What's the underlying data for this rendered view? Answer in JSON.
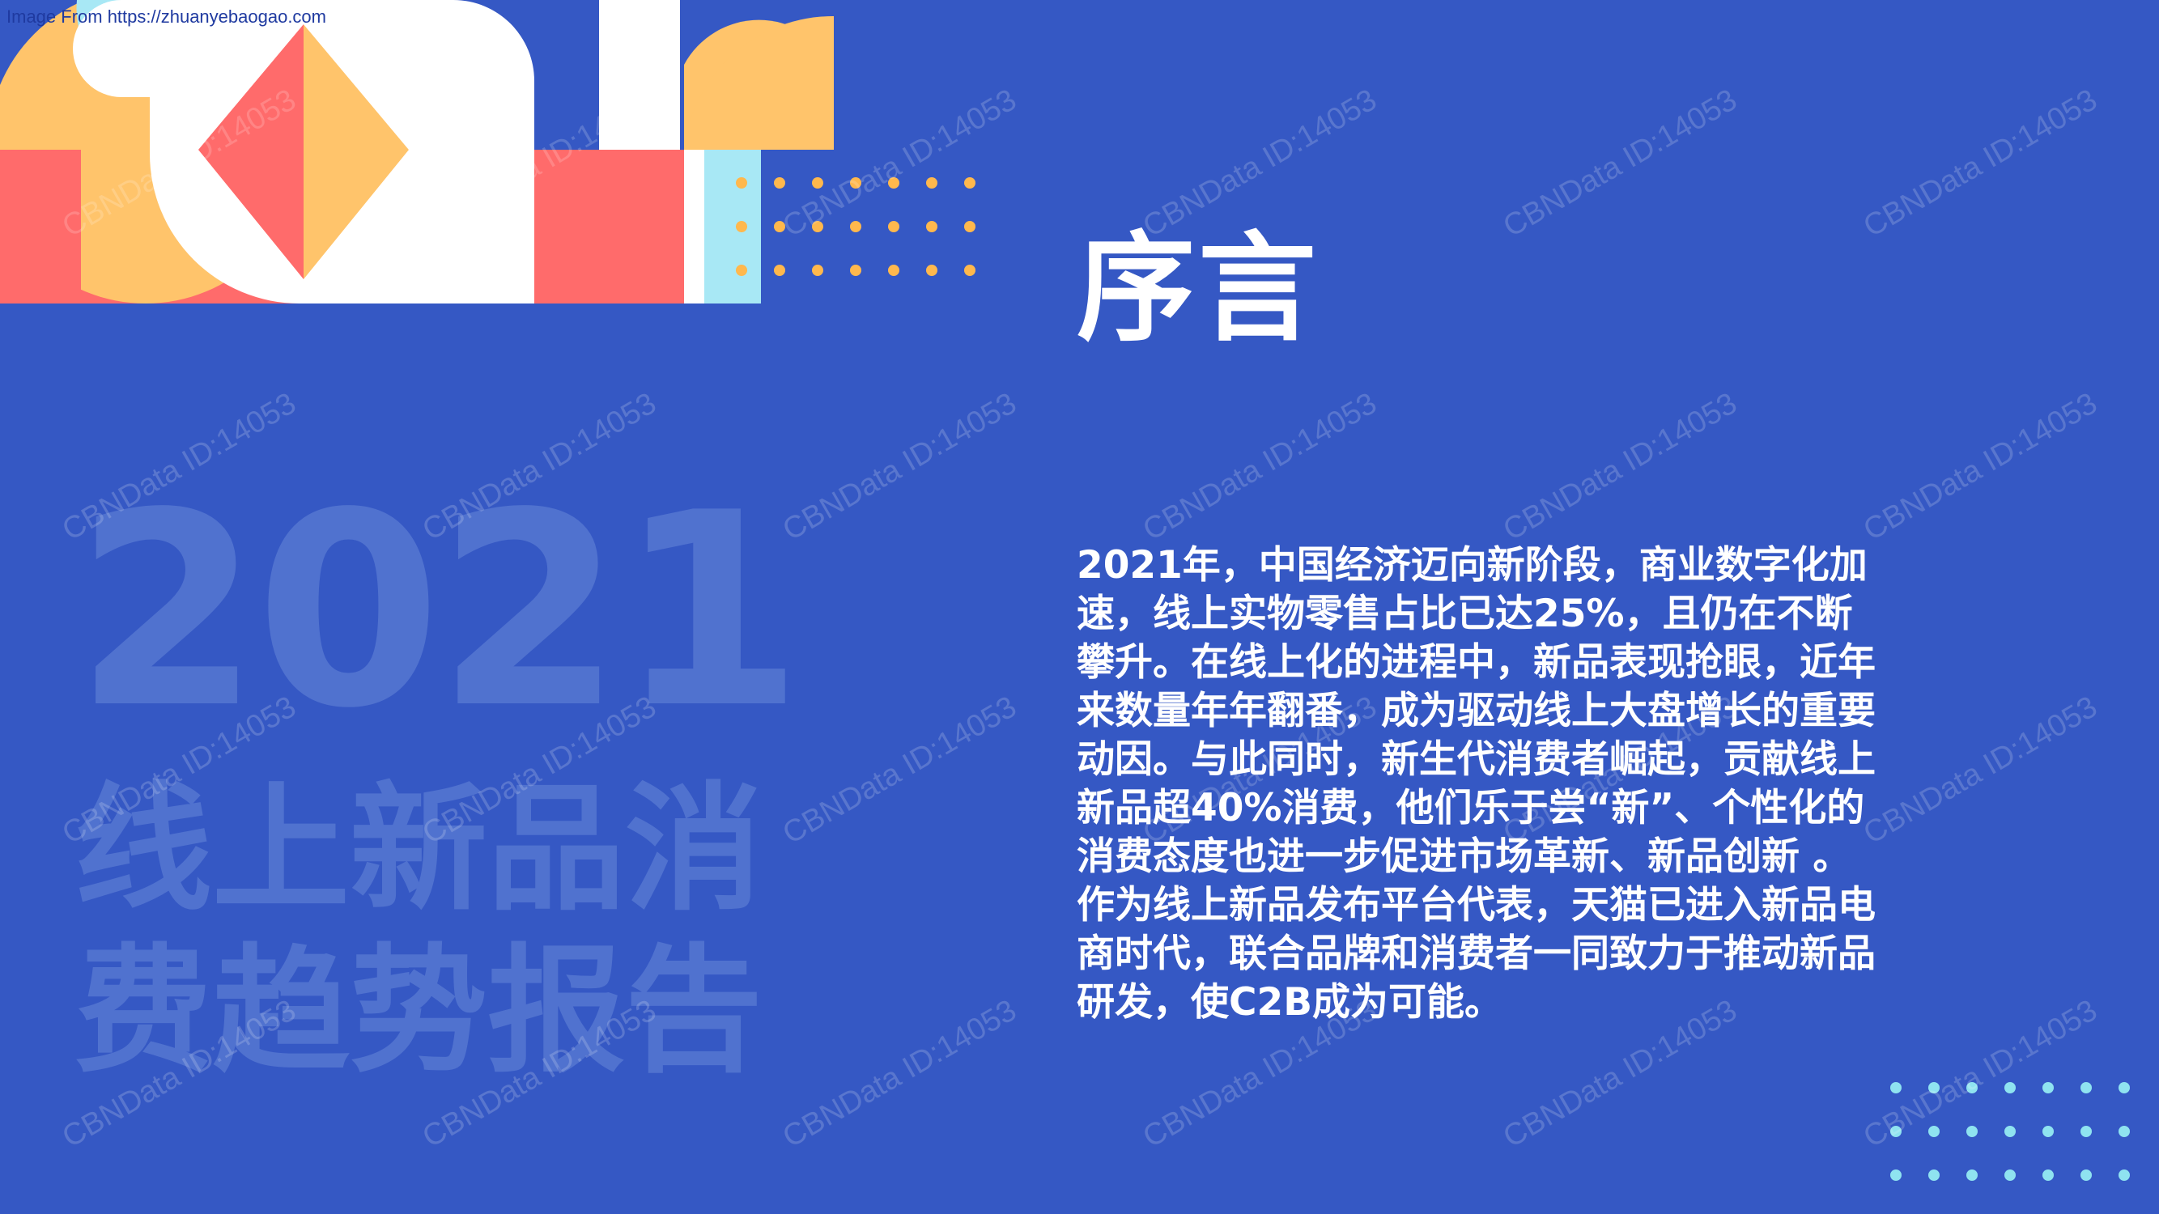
{
  "source_note": "Image From https://zhuanyebaogao.com",
  "title": "序言",
  "background_year": "2021",
  "background_report_lines": [
    "线上新品消",
    "费趋势报告"
  ],
  "body_paragraph": "2021年，中国经济迈向新阶段，商业数字化加速，线上实物零售占比已达25%，且仍在不断攀升。在线上化的进程中，新品表现抢眼，近年来数量年年翻番，成为驱动线上大盘增长的重要动因。与此同时，新生代消费者崛起，贡献线上新品超40%消费，他们乐于尝“新”、个性化的消费态度也进一步促进市场革新、新品创新 。作为线上新品发布平台代表，天猫已进入新品电商时代，联合品牌和消费者一同致力于推动新品研发，使C2B成为可能。",
  "watermark_text": "CBNData ID:14053",
  "colors": {
    "background": "#3558c4",
    "coral": "#ff6b6b",
    "yellow": "#ffc46b",
    "light_blue": "#a8e8f5",
    "white": "#ffffff",
    "dot_yellow": "#ffb84d",
    "dot_cyan": "#8fe3f0"
  }
}
